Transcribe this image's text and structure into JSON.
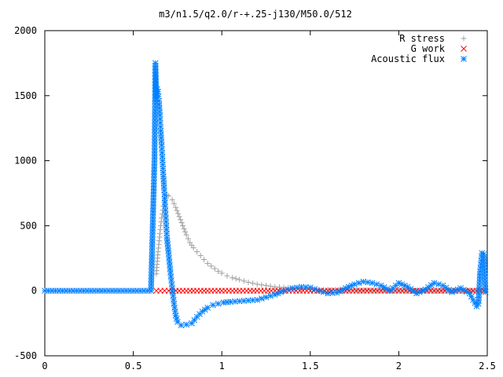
{
  "chart_data": {
    "type": "scatter",
    "title": "m3/n1.5/q2.0/r-+.25-j130/M50.0/512",
    "xlabel": "",
    "ylabel": "",
    "xlim": [
      0,
      2.5
    ],
    "ylim": [
      -500,
      2000
    ],
    "x_ticks": [
      0,
      0.5,
      1,
      1.5,
      2,
      2.5
    ],
    "x_tick_labels": [
      "0",
      "0.5",
      "1",
      "1.5",
      "2",
      "2.5"
    ],
    "y_ticks": [
      -500,
      0,
      500,
      1000,
      1500,
      2000
    ],
    "y_tick_labels": [
      "-500",
      "0",
      "500",
      "1000",
      "1500",
      "2000"
    ],
    "grid": false,
    "legend_position": "top-right",
    "series": [
      {
        "name": "R stress",
        "marker": "+",
        "color": "#a0a0a4",
        "x": [
          0.63,
          0.64,
          0.65,
          0.66,
          0.67,
          0.68,
          0.69,
          0.7,
          0.72,
          0.74,
          0.76,
          0.78,
          0.8,
          0.82,
          0.84,
          0.86,
          0.88,
          0.9,
          0.92,
          0.94,
          0.96,
          0.98,
          1.0,
          1.03,
          1.06,
          1.1,
          1.15,
          1.2,
          1.25,
          1.3,
          1.35,
          1.4,
          1.45,
          1.5,
          1.55,
          1.6,
          1.7,
          1.8,
          1.9,
          2.0,
          2.1,
          2.2,
          2.3,
          2.4,
          2.48
        ],
        "y": [
          130,
          300,
          440,
          560,
          650,
          710,
          735,
          730,
          700,
          640,
          570,
          500,
          430,
          370,
          330,
          300,
          270,
          240,
          210,
          190,
          170,
          150,
          135,
          115,
          100,
          85,
          65,
          50,
          40,
          30,
          25,
          20,
          15,
          10,
          8,
          6,
          4,
          3,
          2,
          2,
          1,
          1,
          1,
          0,
          0
        ]
      },
      {
        "name": "G work",
        "marker": "x",
        "color": "#ff0000",
        "x": [
          0.63,
          0.7,
          0.8,
          0.9,
          1.0,
          1.1,
          1.2,
          1.3,
          1.4,
          1.5,
          1.6,
          1.7,
          1.8,
          1.9,
          2.0,
          2.1,
          2.2,
          2.3,
          2.4,
          2.48
        ],
        "y": [
          0,
          0,
          0,
          0,
          0,
          0,
          0,
          0,
          0,
          0,
          0,
          0,
          0,
          0,
          0,
          0,
          0,
          0,
          0,
          0
        ]
      },
      {
        "name": "Acoustic flux",
        "marker": "*",
        "color": "#0080ff",
        "x": [
          0.0,
          0.1,
          0.2,
          0.3,
          0.4,
          0.5,
          0.6,
          0.62,
          0.625,
          0.63,
          0.635,
          0.64,
          0.645,
          0.65,
          0.655,
          0.66,
          0.665,
          0.67,
          0.675,
          0.68,
          0.685,
          0.69,
          0.7,
          0.71,
          0.72,
          0.73,
          0.74,
          0.75,
          0.77,
          0.8,
          0.83,
          0.86,
          0.89,
          0.92,
          0.95,
          0.98,
          1.01,
          1.05,
          1.1,
          1.15,
          1.2,
          1.25,
          1.3,
          1.35,
          1.4,
          1.45,
          1.5,
          1.55,
          1.6,
          1.65,
          1.7,
          1.75,
          1.8,
          1.85,
          1.9,
          1.95,
          2.0,
          2.05,
          2.1,
          2.15,
          2.2,
          2.25,
          2.3,
          2.35,
          2.4,
          2.42,
          2.44,
          2.45,
          2.46,
          2.47,
          2.48,
          2.49
        ],
        "y": [
          0,
          0,
          0,
          0,
          0,
          0,
          0,
          1020,
          1750,
          1480,
          1550,
          1530,
          1460,
          1350,
          1230,
          1120,
          1000,
          880,
          770,
          650,
          530,
          410,
          280,
          140,
          20,
          -100,
          -190,
          -240,
          -265,
          -260,
          -250,
          -200,
          -160,
          -130,
          -110,
          -100,
          -90,
          -85,
          -80,
          -75,
          -70,
          -50,
          -30,
          0,
          20,
          30,
          25,
          0,
          -20,
          -15,
          20,
          50,
          70,
          60,
          40,
          0,
          60,
          30,
          -20,
          10,
          60,
          40,
          -10,
          20,
          -20,
          -70,
          -120,
          -100,
          150,
          290,
          280,
          -10
        ]
      }
    ]
  }
}
